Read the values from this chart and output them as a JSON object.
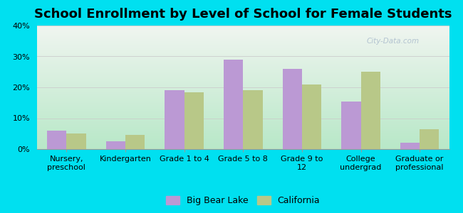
{
  "title": "School Enrollment by Level of School for Female Students",
  "categories": [
    "Nursery,\npreschool",
    "Kindergarten",
    "Grade 1 to 4",
    "Grade 5 to 8",
    "Grade 9 to\n12",
    "College\nundergrad",
    "Graduate or\nprofessional"
  ],
  "big_bear_lake": [
    6,
    2.5,
    19,
    29,
    26,
    15.5,
    2
  ],
  "california": [
    5,
    4.5,
    18.5,
    19,
    21,
    25,
    6.5
  ],
  "bar_color_bbl": "#bb99d4",
  "bar_color_ca": "#b8c888",
  "background_color": "#00e0f0",
  "grad_top": "#f0f5f0",
  "grad_bottom": "#b8e8c8",
  "ylim": [
    0,
    40
  ],
  "yticks": [
    0,
    10,
    20,
    30,
    40
  ],
  "legend_bbl": "Big Bear Lake",
  "legend_ca": "California",
  "title_fontsize": 13,
  "tick_fontsize": 8,
  "legend_fontsize": 9,
  "watermark": "City-Data.com",
  "watermark_color": "#aabbcc"
}
